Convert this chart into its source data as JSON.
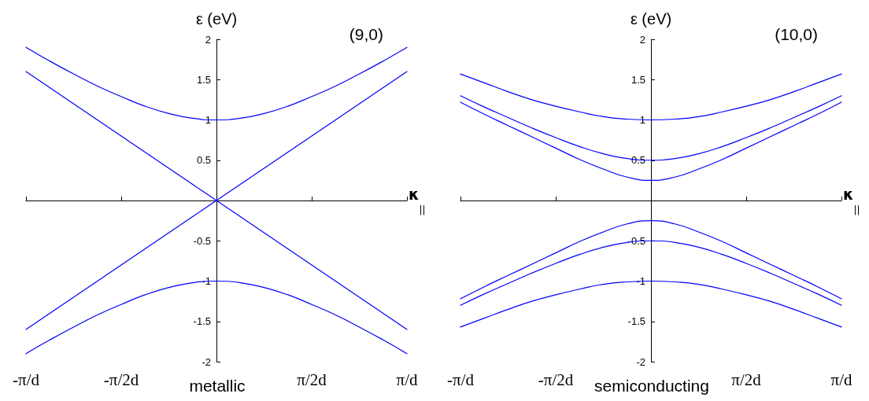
{
  "chart_data": [
    {
      "type": "line",
      "title": "(9,0)",
      "subtitle": "metallic",
      "xlabel": "κ$_{||}$",
      "ylabel": "ε (eV)",
      "categories": [
        "-π/d",
        null,
        null,
        null,
        "-π/2d",
        null,
        null,
        null,
        null,
        null,
        null,
        null,
        "π/2d",
        null,
        null,
        null,
        "π/d"
      ],
      "ylim": [
        -2,
        2
      ],
      "yticks": [
        -2,
        -1.5,
        -1,
        -0.5,
        0.5,
        1,
        1.5,
        2
      ],
      "grid": false,
      "series": [
        {
          "color": "#0000ff",
          "values": [
            1.9,
            1.73,
            1.57,
            1.42,
            1.29,
            1.17,
            1.08,
            1.02,
            1.0,
            1.02,
            1.08,
            1.17,
            1.29,
            1.42,
            1.57,
            1.73,
            1.9
          ]
        },
        {
          "color": "#0000ff",
          "values": [
            1.6,
            1.4,
            1.2,
            1.0,
            0.8,
            0.6,
            0.4,
            0.2,
            0,
            -0.2,
            -0.4,
            -0.6,
            -0.8,
            -1.0,
            -1.2,
            -1.4,
            -1.6
          ]
        },
        {
          "color": "#0000ff",
          "values": [
            -1.6,
            -1.4,
            -1.2,
            -1.0,
            -0.8,
            -0.6,
            -0.4,
            -0.2,
            0,
            0.2,
            0.4,
            0.6,
            0.8,
            1.0,
            1.2,
            1.4,
            1.6
          ]
        },
        {
          "color": "#0000ff",
          "values": [
            -1.9,
            -1.73,
            -1.57,
            -1.42,
            -1.29,
            -1.17,
            -1.08,
            -1.02,
            -1.0,
            -1.02,
            -1.08,
            -1.17,
            -1.29,
            -1.42,
            -1.57,
            -1.73,
            -1.9
          ]
        }
      ]
    },
    {
      "type": "line",
      "title": "(10,0)",
      "subtitle": "semiconducting",
      "xlabel": "κ$_{||}$",
      "ylabel": "ε (eV)",
      "categories": [
        "-π/d",
        null,
        null,
        null,
        "-π/2d",
        null,
        null,
        null,
        null,
        null,
        null,
        null,
        "π/2d",
        null,
        null,
        null,
        "π/d"
      ],
      "ylim": [
        -2,
        2
      ],
      "yticks": [
        -2,
        -1.5,
        -1,
        -0.5,
        0.5,
        1,
        1.5,
        2
      ],
      "grid": false,
      "series": [
        {
          "color": "#0000ff",
          "values": [
            1.57,
            1.46,
            1.35,
            1.25,
            1.17,
            1.1,
            1.04,
            1.01,
            1.0,
            1.01,
            1.04,
            1.1,
            1.17,
            1.25,
            1.35,
            1.46,
            1.57
          ]
        },
        {
          "color": "#0000ff",
          "values": [
            1.3,
            1.16,
            1.03,
            0.9,
            0.78,
            0.67,
            0.58,
            0.52,
            0.5,
            0.52,
            0.58,
            0.67,
            0.78,
            0.9,
            1.03,
            1.16,
            1.3
          ]
        },
        {
          "color": "#0000ff",
          "values": [
            1.22,
            1.07,
            0.93,
            0.79,
            0.65,
            0.51,
            0.39,
            0.29,
            0.25,
            0.29,
            0.39,
            0.51,
            0.65,
            0.79,
            0.93,
            1.07,
            1.22
          ]
        },
        {
          "color": "#0000ff",
          "values": [
            -1.22,
            -1.07,
            -0.93,
            -0.79,
            -0.65,
            -0.51,
            -0.39,
            -0.29,
            -0.25,
            -0.29,
            -0.39,
            -0.51,
            -0.65,
            -0.79,
            -0.93,
            -1.07,
            -1.22
          ]
        },
        {
          "color": "#0000ff",
          "values": [
            -1.3,
            -1.16,
            -1.03,
            -0.9,
            -0.78,
            -0.67,
            -0.58,
            -0.52,
            -0.5,
            -0.52,
            -0.58,
            -0.67,
            -0.78,
            -0.9,
            -1.03,
            -1.16,
            -1.3
          ]
        },
        {
          "color": "#0000ff",
          "values": [
            -1.57,
            -1.46,
            -1.35,
            -1.25,
            -1.17,
            -1.1,
            -1.04,
            -1.01,
            -1.0,
            -1.01,
            -1.04,
            -1.1,
            -1.17,
            -1.25,
            -1.35,
            -1.46,
            -1.57
          ]
        }
      ]
    }
  ]
}
